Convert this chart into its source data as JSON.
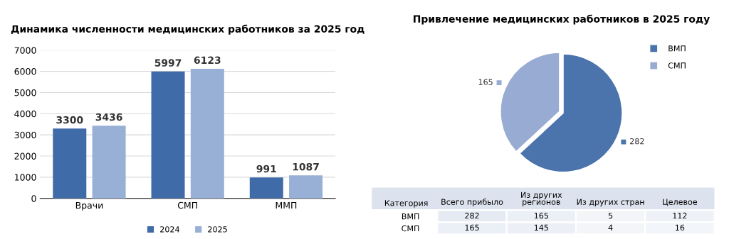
{
  "chart_data": [
    {
      "type": "bar",
      "title": "Динамика численности медицинских работников за 2025 год",
      "categories": [
        "Врачи",
        "СМП",
        "ММП"
      ],
      "series": [
        {
          "name": "2024",
          "color": "#3f6ba8",
          "values": [
            3300,
            5997,
            991
          ]
        },
        {
          "name": "2025",
          "color": "#98afd6",
          "values": [
            3436,
            6123,
            1087
          ]
        }
      ],
      "ylim": [
        0,
        7000
      ],
      "yticks": [
        0,
        1000,
        2000,
        3000,
        4000,
        5000,
        6000,
        7000
      ],
      "grid": "y",
      "legend": "bottom",
      "data_labels": true
    },
    {
      "type": "pie",
      "title": "Привлечение медицинских работников в 2025 году",
      "categories": [
        "ВМП",
        "СМП"
      ],
      "values": [
        282,
        165
      ],
      "colors": [
        "#4a74ab",
        "#98abd2"
      ],
      "legend": "top right",
      "data_labels": true
    },
    {
      "type": "heatmap",
      "ylabel": "Категория",
      "data_labels": true,
      "categories": [
        "Всего прибыло",
        "Из других регионов",
        "Из других стран",
        "Целевое"
      ],
      "y_categories": [
        "ВМП",
        "СМП"
      ],
      "cells": [
        [
          282,
          165,
          5,
          112
        ],
        [
          165,
          145,
          4,
          16
        ]
      ]
    }
  ]
}
